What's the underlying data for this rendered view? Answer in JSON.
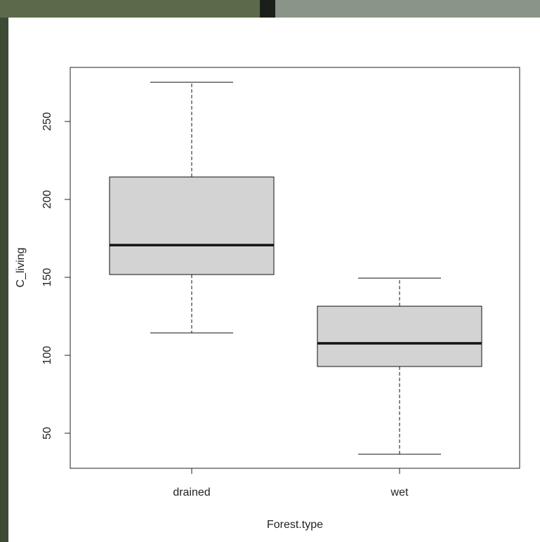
{
  "chart_data": {
    "type": "box",
    "xlabel": "Forest.type",
    "ylabel": "C_living",
    "categories": [
      "drained",
      "wet"
    ],
    "boxes": [
      {
        "min": 114.4,
        "q1": 151.8,
        "median": 170.7,
        "q3": 214.4,
        "max": 275.2
      },
      {
        "min": 36.5,
        "q1": 92.8,
        "median": 107.7,
        "q3": 131.5,
        "max": 149.5
      }
    ],
    "color": "#d3d3d3",
    "ylim": [
      27.5,
      284.7
    ],
    "yticks": [
      50,
      100,
      150,
      200,
      250
    ]
  }
}
